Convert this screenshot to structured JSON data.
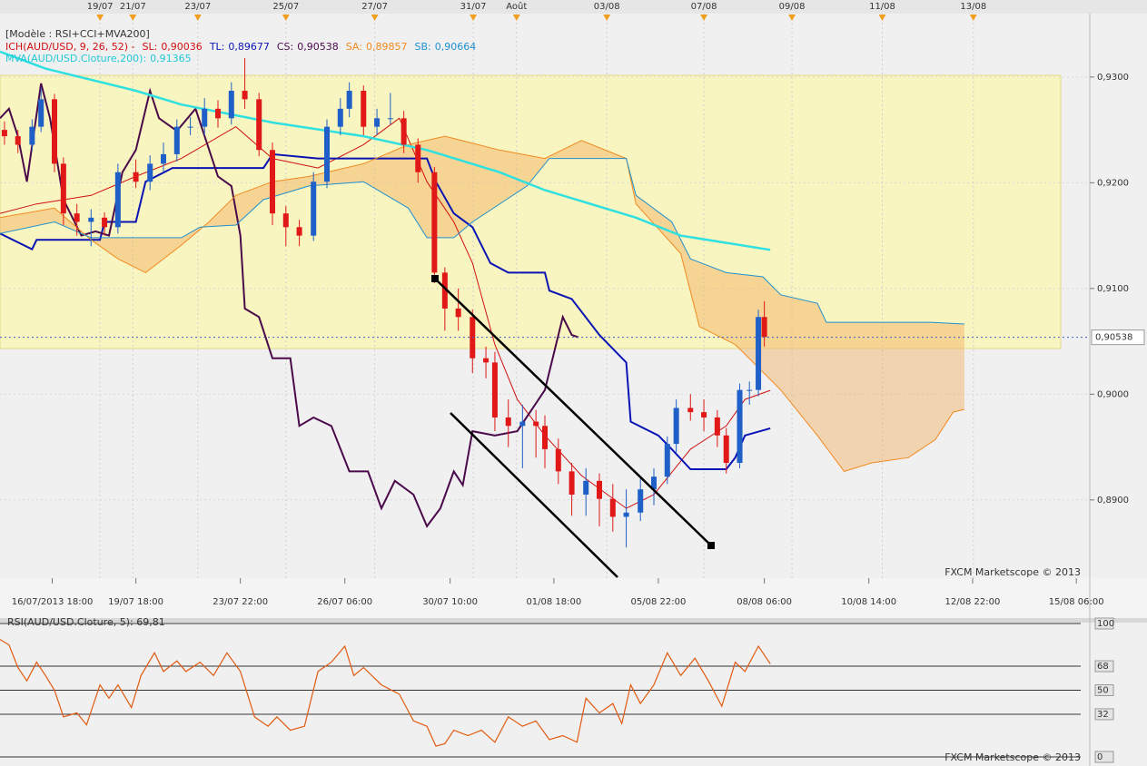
{
  "chart_data": [
    {
      "type": "candlestick",
      "title": "[Modèle : RSI+CCI+MVA200]",
      "indicator": "ICH(AUD/USD, 9, 26, 52) -",
      "watermark": "FXCM Marketscope © 2013",
      "up_color": "#1f5fc8",
      "down_color": "#e01818",
      "cloud_color": "#f5b060",
      "x": [
        0.6,
        2.4,
        4.3,
        5.5,
        7.3,
        8.5,
        10.3,
        12.2,
        14.0,
        15.8,
        18.2,
        20.1,
        21.9,
        23.7,
        25.5,
        27.4,
        29.2,
        31.0,
        32.8,
        34.7,
        36.5,
        38.3,
        40.1,
        42.0,
        43.8,
        45.6,
        46.8,
        48.7,
        50.5,
        52.3,
        54.1,
        56.0,
        58.2,
        59.6,
        61.4,
        63.3,
        65.1,
        66.3,
        68.1,
        70.0,
        71.8,
        73.0,
        74.8,
        76.6,
        78.5,
        80.3,
        82.1,
        83.9,
        85.8,
        87.6,
        89.4,
        90.6,
        92.5,
        94.3,
        96.1,
        97.3,
        99.1,
        100.4,
        101.6,
        102.4
      ],
      "open": [
        0.925,
        0.9244,
        0.9236,
        0.9253,
        0.9279,
        0.9218,
        0.9171,
        0.9163,
        0.9167,
        0.9158,
        0.921,
        0.9201,
        0.9218,
        0.9227,
        0.9253,
        0.9253,
        0.927,
        0.9261,
        0.9287,
        0.9279,
        0.9231,
        0.9171,
        0.9158,
        0.915,
        0.9201,
        0.9253,
        0.927,
        0.9287,
        0.9253,
        0.9261,
        0.9261,
        0.9236,
        0.921,
        0.9115,
        0.9081,
        0.9073,
        0.9034,
        0.903,
        0.8978,
        0.897,
        0.8974,
        0.897,
        0.8948,
        0.8927,
        0.8905,
        0.8918,
        0.8901,
        0.8884,
        0.8888,
        0.891,
        0.8922,
        0.8953,
        0.8987,
        0.8983,
        0.8978,
        0.8961,
        0.8935,
        0.9004,
        0.9004,
        0.9073
      ],
      "high": [
        0.9258,
        0.925,
        0.926,
        0.929,
        0.9284,
        0.9224,
        0.918,
        0.9175,
        0.9172,
        0.9218,
        0.9222,
        0.9226,
        0.9238,
        0.926,
        0.9262,
        0.928,
        0.9278,
        0.9295,
        0.9318,
        0.9285,
        0.9238,
        0.9178,
        0.9165,
        0.921,
        0.926,
        0.928,
        0.9295,
        0.9292,
        0.927,
        0.9285,
        0.9268,
        0.9242,
        0.9215,
        0.912,
        0.91,
        0.908,
        0.9045,
        0.904,
        0.8995,
        0.899,
        0.8985,
        0.898,
        0.8958,
        0.8935,
        0.893,
        0.8925,
        0.8915,
        0.891,
        0.892,
        0.893,
        0.896,
        0.8995,
        0.9,
        0.8995,
        0.8985,
        0.8968,
        0.901,
        0.9012,
        0.908,
        0.9088
      ],
      "low": [
        0.9236,
        0.9228,
        0.923,
        0.9248,
        0.921,
        0.916,
        0.915,
        0.914,
        0.915,
        0.9152,
        0.9195,
        0.9193,
        0.921,
        0.922,
        0.9245,
        0.9245,
        0.9252,
        0.9255,
        0.927,
        0.9225,
        0.916,
        0.914,
        0.914,
        0.9145,
        0.9195,
        0.9245,
        0.9262,
        0.9245,
        0.9245,
        0.9255,
        0.9228,
        0.92,
        0.9105,
        0.906,
        0.906,
        0.902,
        0.9015,
        0.8965,
        0.895,
        0.893,
        0.894,
        0.893,
        0.8915,
        0.8885,
        0.8885,
        0.8875,
        0.887,
        0.8855,
        0.888,
        0.8895,
        0.8915,
        0.8945,
        0.8975,
        0.8965,
        0.895,
        0.8925,
        0.893,
        0.899,
        0.8998,
        0.9045
      ],
      "close": [
        0.9244,
        0.9236,
        0.9253,
        0.9279,
        0.9218,
        0.9171,
        0.9163,
        0.9167,
        0.9158,
        0.921,
        0.9201,
        0.9218,
        0.9227,
        0.9253,
        0.9253,
        0.927,
        0.9261,
        0.9287,
        0.9279,
        0.9231,
        0.9171,
        0.9158,
        0.915,
        0.9201,
        0.9253,
        0.927,
        0.9287,
        0.9253,
        0.9261,
        0.9261,
        0.9236,
        0.921,
        0.9115,
        0.9081,
        0.9073,
        0.9034,
        0.903,
        0.8978,
        0.897,
        0.8974,
        0.897,
        0.8948,
        0.8927,
        0.8905,
        0.8918,
        0.8901,
        0.8884,
        0.8888,
        0.891,
        0.8922,
        0.8953,
        0.8987,
        0.8983,
        0.8978,
        0.8961,
        0.8935,
        0.9004,
        0.9004,
        0.9073,
        0.9054
      ],
      "series": [
        {
          "name": "SL:",
          "label": "0,90036",
          "color": "#d01010",
          "width": 1,
          "x": [
            0,
            4.9,
            12.2,
            18.2,
            24.3,
            31.6,
            36.5,
            42.6,
            48.7,
            53.5,
            57.2,
            60.8,
            63.3,
            66.3,
            69.3,
            73.0,
            77.9,
            83.9,
            87.6,
            92.5,
            97.3,
            99.8,
            103.2
          ],
          "values": [
            0.9171,
            0.918,
            0.9188,
            0.9206,
            0.9223,
            0.9253,
            0.9223,
            0.9214,
            0.9236,
            0.9261,
            0.9201,
            0.9163,
            0.9124,
            0.9047,
            0.8995,
            0.8961,
            0.8923,
            0.8892,
            0.8905,
            0.8948,
            0.897,
            0.8995,
            0.90036
          ]
        },
        {
          "name": "TL:",
          "label": "0,89677",
          "color": "#0a14b4",
          "width": 2,
          "x": [
            0,
            4.3,
            4.9,
            13.4,
            14.0,
            18.2,
            19.5,
            23.1,
            35.3,
            36.5,
            42.6,
            57.2,
            58.4,
            60.8,
            63.3,
            65.7,
            68.1,
            73.0,
            73.6,
            76.6,
            80.3,
            83.9,
            84.5,
            88.2,
            90.0,
            92.5,
            97.3,
            98.5,
            99.8,
            103.2
          ],
          "values": [
            0.9152,
            0.9137,
            0.9146,
            0.9146,
            0.9163,
            0.9163,
            0.9201,
            0.9214,
            0.9214,
            0.9227,
            0.9223,
            0.9223,
            0.9201,
            0.9171,
            0.9158,
            0.9124,
            0.9115,
            0.9115,
            0.9098,
            0.909,
            0.9056,
            0.903,
            0.8974,
            0.8961,
            0.8948,
            0.8929,
            0.8929,
            0.894,
            0.8961,
            0.89677
          ]
        },
        {
          "name": "CS:",
          "label": "0,90538",
          "color": "#4a0a4a",
          "width": 2,
          "x": [
            0,
            1.2,
            2.4,
            3.6,
            5.5,
            6.7,
            8.5,
            10.9,
            12.8,
            14.6,
            16.4,
            18.2,
            20.1,
            21.3,
            23.7,
            26.2,
            29.2,
            31.0,
            32.2,
            32.8,
            34.7,
            36.5,
            38.9,
            40.1,
            42.0,
            44.4,
            46.8,
            49.3,
            51.1,
            52.9,
            55.4,
            57.2,
            59.0,
            60.8,
            62.0,
            63.3,
            66.3,
            69.3,
            73.0,
            75.4,
            76.6,
            77.5
          ],
          "values": [
            0.9261,
            0.927,
            0.9244,
            0.9201,
            0.9294,
            0.9261,
            0.9184,
            0.915,
            0.9154,
            0.915,
            0.921,
            0.9231,
            0.9287,
            0.9261,
            0.9249,
            0.927,
            0.9206,
            0.9197,
            0.915,
            0.9081,
            0.9073,
            0.9034,
            0.9034,
            0.897,
            0.8978,
            0.897,
            0.8927,
            0.8927,
            0.8892,
            0.8918,
            0.8905,
            0.8875,
            0.8892,
            0.8927,
            0.8914,
            0.8965,
            0.8961,
            0.8965,
            0.9004,
            0.9073,
            0.9056,
            0.90538
          ]
        },
        {
          "name": "SA:",
          "label": "0,89857",
          "color": "#f08a20",
          "width": 1,
          "x": [
            0,
            7.3,
            12.2,
            15.8,
            19.5,
            24.3,
            28.0,
            31.6,
            36.5,
            41.4,
            48.7,
            54.7,
            59.6,
            66.9,
            73.0,
            77.9,
            83.9,
            85.2,
            91.2,
            93.7,
            98.5,
            104.6,
            109.5,
            113.1,
            116.8,
            121.7,
            125.3,
            127.7,
            129.2
          ],
          "values": [
            0.9167,
            0.9176,
            0.9146,
            0.9128,
            0.9115,
            0.9141,
            0.9163,
            0.9188,
            0.9201,
            0.9206,
            0.9218,
            0.9236,
            0.9244,
            0.9231,
            0.9223,
            0.924,
            0.9223,
            0.918,
            0.9133,
            0.9064,
            0.9047,
            0.9004,
            0.8961,
            0.8927,
            0.8935,
            0.894,
            0.8957,
            0.8983,
            0.89857
          ]
        },
        {
          "name": "SB:",
          "label": "0,90664",
          "color": "#2090d0",
          "width": 1,
          "x": [
            0,
            7.3,
            12.2,
            24.3,
            26.8,
            31.6,
            35.3,
            41.4,
            48.7,
            54.7,
            57.2,
            60.8,
            63.3,
            70.6,
            73.6,
            83.9,
            85.2,
            90.0,
            92.5,
            97.3,
            102.2,
            104.6,
            109.5,
            110.7,
            124.7,
            129.2
          ],
          "values": [
            0.9152,
            0.9163,
            0.9148,
            0.9148,
            0.9158,
            0.916,
            0.9184,
            0.9197,
            0.9201,
            0.9176,
            0.9148,
            0.9148,
            0.9163,
            0.9197,
            0.9223,
            0.9223,
            0.9188,
            0.9163,
            0.9128,
            0.9115,
            0.9111,
            0.9094,
            0.9086,
            0.9068,
            0.9068,
            0.90664
          ]
        },
        {
          "name": "MVA(AUD/USD.Cloture,200):",
          "label": "0,91365",
          "color": "#30e0e0",
          "width": 2.5,
          "x": [
            0,
            6.1,
            18.2,
            24.3,
            36.5,
            48.7,
            57.2,
            66.9,
            73.0,
            85.2,
            91.2,
            103.2
          ],
          "values": [
            0.9324,
            0.9308,
            0.9287,
            0.9274,
            0.9257,
            0.9244,
            0.9231,
            0.921,
            0.9193,
            0.9167,
            0.915,
            0.91365
          ]
        }
      ],
      "last_price": {
        "value": 0.90538,
        "label": "0,90538"
      },
      "xlim": [
        0,
        146
      ],
      "ylim": [
        0.8826,
        0.936
      ],
      "yticks": [
        {
          "value": 0.89,
          "label": "0,8900"
        },
        {
          "value": 0.9,
          "label": "0,9000"
        },
        {
          "value": 0.91,
          "label": "0,9100"
        },
        {
          "value": 0.92,
          "label": "0,9200"
        },
        {
          "value": 0.93,
          "label": "0,9300"
        }
      ],
      "xticks": [
        {
          "value": 7,
          "label": "16/07/2013 18:00"
        },
        {
          "value": 18.2,
          "label": "19/07 18:00"
        },
        {
          "value": 32.2,
          "label": "23/07 22:00"
        },
        {
          "value": 46.2,
          "label": "26/07 06:00"
        },
        {
          "value": 60.3,
          "label": "30/07 10:00"
        },
        {
          "value": 74.2,
          "label": "01/08 18:00"
        },
        {
          "value": 88.2,
          "label": "05/08 22:00"
        },
        {
          "value": 102.4,
          "label": "08/08 06:00"
        },
        {
          "value": 116.4,
          "label": "10/08 14:00"
        },
        {
          "value": 130.3,
          "label": "12/08 22:00"
        },
        {
          "value": 144.2,
          "label": "15/08 06:00"
        }
      ],
      "top_xticks": [
        {
          "value": 13.4,
          "label": "19/07"
        },
        {
          "value": 17.8,
          "label": "21/07"
        },
        {
          "value": 26.5,
          "label": "23/07"
        },
        {
          "value": 38.3,
          "label": "25/07"
        },
        {
          "value": 50.2,
          "label": "27/07"
        },
        {
          "value": 63.4,
          "label": "31/07"
        },
        {
          "value": 69.2,
          "label": "Août"
        },
        {
          "value": 81.3,
          "label": "03/08"
        },
        {
          "value": 94.3,
          "label": "07/08"
        },
        {
          "value": 106.1,
          "label": "09/08"
        },
        {
          "value": 118.2,
          "label": "11/08"
        },
        {
          "value": 130.4,
          "label": "13/08"
        }
      ]
    },
    {
      "type": "line",
      "title": "RSI(AUD/USD.Cloture, 5): 69,81",
      "watermark": "FXCM Marketscope © 2013",
      "series": [
        {
          "color": "#e05a10",
          "x": [
            0,
            1.2,
            2.4,
            3.6,
            4.9,
            6.1,
            7.3,
            8.5,
            10.3,
            11.6,
            13.4,
            14.6,
            15.8,
            17.6,
            18.9,
            20.7,
            21.9,
            23.7,
            24.9,
            26.8,
            28.6,
            30.4,
            32.2,
            34.1,
            35.9,
            37.1,
            38.9,
            40.8,
            42.6,
            44.4,
            46.2,
            47.4,
            48.7,
            51.1,
            53.5,
            55.4,
            57.2,
            58.4,
            59.6,
            60.8,
            62.7,
            64.5,
            66.3,
            68.1,
            70.0,
            71.8,
            73.6,
            75.4,
            77.3,
            78.5,
            80.3,
            82.1,
            83.3,
            84.5,
            85.8,
            87.6,
            89.4,
            91.2,
            93.1,
            94.9,
            96.7,
            98.5,
            99.8,
            101.6,
            103.2
          ],
          "values": [
            88,
            84,
            67,
            57,
            71,
            61,
            50,
            30,
            33,
            24,
            54,
            44,
            54,
            37,
            61,
            78,
            64,
            72,
            64,
            71,
            61,
            78,
            64,
            30,
            23,
            30,
            20,
            23,
            64,
            71,
            83,
            61,
            67,
            54,
            47,
            27,
            23,
            8,
            10,
            20,
            16,
            20,
            11,
            30,
            23,
            27,
            13,
            16,
            11,
            44,
            33,
            40,
            25,
            54,
            40,
            54,
            78,
            61,
            74,
            57,
            38,
            71,
            64,
            83,
            69.81
          ]
        }
      ],
      "xlim": [
        0,
        146
      ],
      "ylim": [
        0,
        100
      ],
      "yticks": [
        0,
        32,
        50,
        68,
        100
      ]
    }
  ]
}
